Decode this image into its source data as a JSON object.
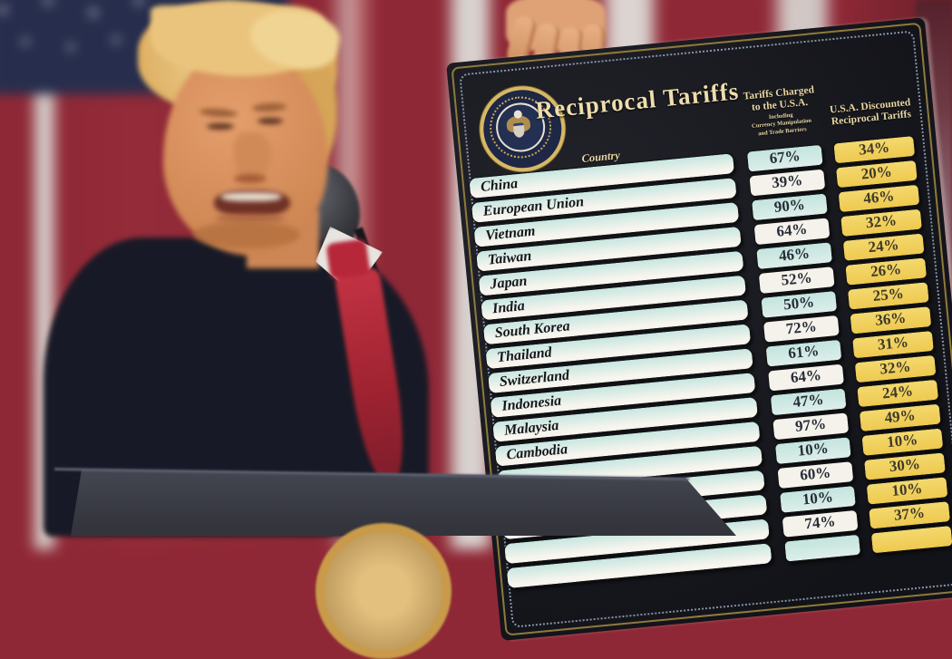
{
  "board": {
    "title": "Reciprocal Tariffs",
    "col_country": "Country",
    "col_charged_l1": "Tariffs Charged",
    "col_charged_l2": "to the U.S.A.",
    "col_charged_sub": [
      "Including",
      "Currency Manipulation",
      "and Trade Barriers"
    ],
    "col_discounted_l1": "U.S.A. Discounted",
    "col_discounted_l2": "Reciprocal Tariffs"
  },
  "chart_data": {
    "type": "table",
    "title": "Reciprocal Tariffs",
    "columns": [
      "Country",
      "Tariffs Charged to the U.S.A. Including Currency Manipulation and Trade Barriers",
      "U.S.A. Discounted Reciprocal Tariffs"
    ],
    "rows": [
      {
        "country": "China",
        "charged": "67%",
        "discounted": "34%"
      },
      {
        "country": "European Union",
        "charged": "39%",
        "discounted": "20%"
      },
      {
        "country": "Vietnam",
        "charged": "90%",
        "discounted": "46%"
      },
      {
        "country": "Taiwan",
        "charged": "64%",
        "discounted": "32%"
      },
      {
        "country": "Japan",
        "charged": "46%",
        "discounted": "24%"
      },
      {
        "country": "India",
        "charged": "52%",
        "discounted": "26%"
      },
      {
        "country": "South Korea",
        "charged": "50%",
        "discounted": "25%"
      },
      {
        "country": "Thailand",
        "charged": "72%",
        "discounted": "36%"
      },
      {
        "country": "Switzerland",
        "charged": "61%",
        "discounted": "31%"
      },
      {
        "country": "Indonesia",
        "charged": "64%",
        "discounted": "32%"
      },
      {
        "country": "Malaysia",
        "charged": "47%",
        "discounted": "24%"
      },
      {
        "country": "Cambodia",
        "charged": "97%",
        "discounted": "49%"
      },
      {
        "country": "",
        "charged": "10%",
        "discounted": "10%"
      },
      {
        "country": "",
        "charged": "60%",
        "discounted": "30%"
      },
      {
        "country": "",
        "charged": "10%",
        "discounted": "10%"
      },
      {
        "country": "",
        "charged": "74%",
        "discounted": "37%"
      },
      {
        "country": "",
        "charged": "",
        "discounted": ""
      }
    ],
    "charged_values_pct": [
      67,
      39,
      90,
      64,
      46,
      52,
      50,
      72,
      61,
      64,
      47,
      97,
      10,
      60,
      10,
      74
    ],
    "discounted_values_pct": [
      34,
      20,
      46,
      32,
      24,
      26,
      25,
      36,
      31,
      32,
      24,
      49,
      10,
      30,
      10,
      37
    ]
  },
  "colors": {
    "board_black": "#15161b",
    "frame_gold": "#8e7a3e",
    "header_cream": "#eeddad",
    "cell_teal": "#cde9e2",
    "cell_white": "#f4f2ea",
    "cell_yellow": "#f0d060",
    "flag_red": "#8f2836",
    "canton_navy": "#272e4d",
    "suit_navy": "#171a26",
    "tie_red": "#c03040",
    "podium_grey": "#42454f",
    "skin": "#dfa277"
  }
}
